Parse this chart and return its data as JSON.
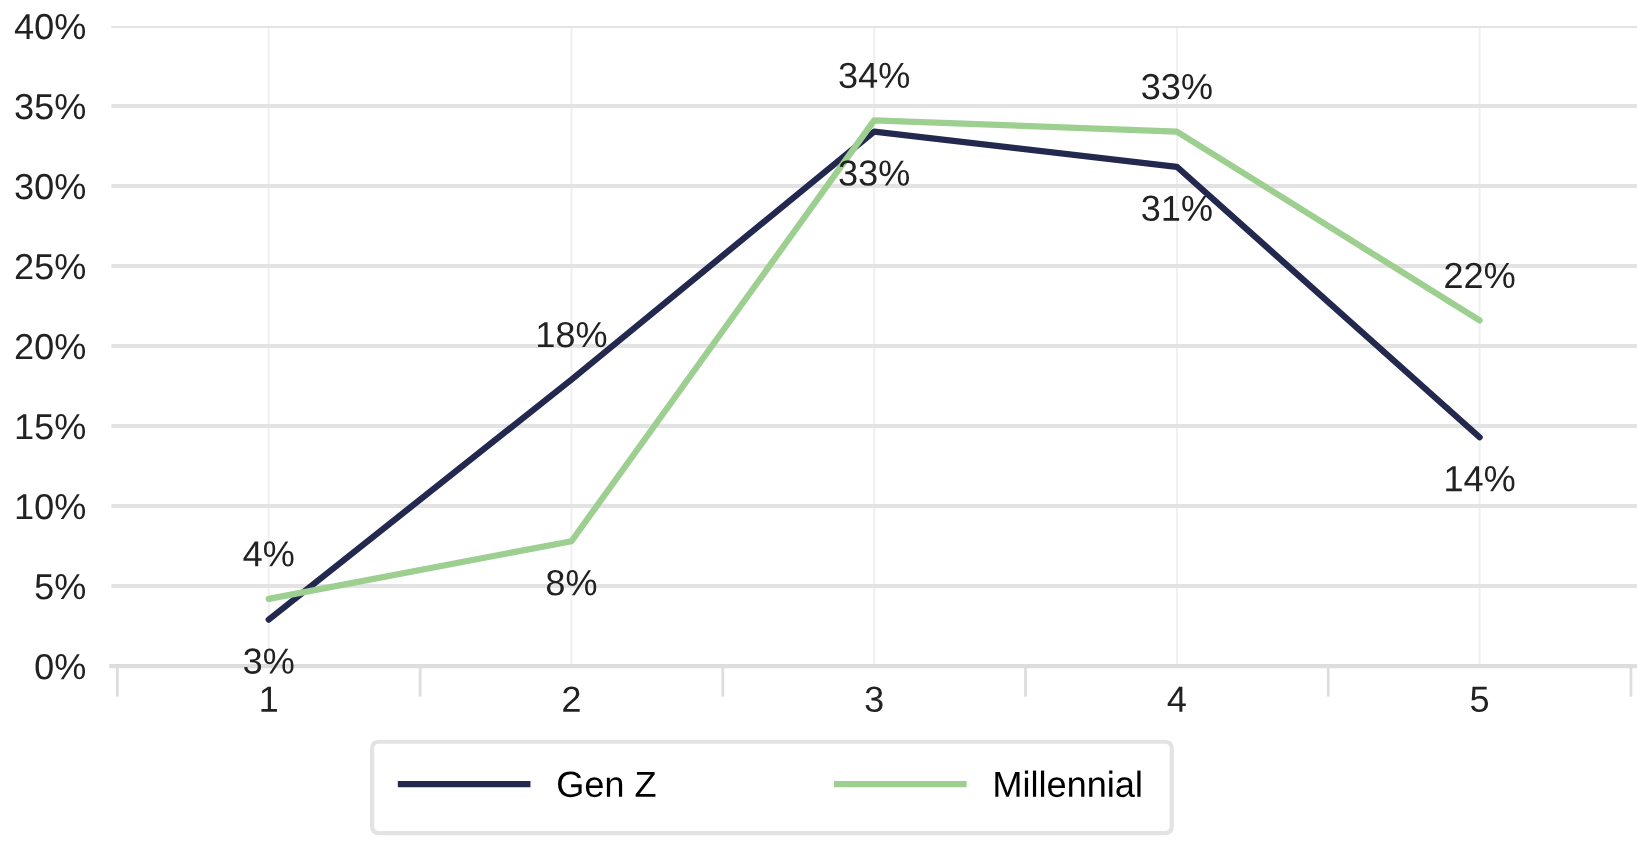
{
  "chart_data": {
    "type": "line",
    "categories": [
      "1",
      "2",
      "3",
      "4",
      "5"
    ],
    "series": [
      {
        "name": "Gen Z",
        "color": "#23284f",
        "values": [
          2.9,
          17.9,
          33.4,
          31.2,
          14.3
        ],
        "value_labels": [
          "3%",
          "18%",
          "33%",
          "31%",
          "14%"
        ]
      },
      {
        "name": "Millennial",
        "color": "#9dcf90",
        "values": [
          4.2,
          7.8,
          34.1,
          33.4,
          21.6
        ],
        "value_labels": [
          "4%",
          "8%",
          "34%",
          "33%",
          "22%"
        ]
      }
    ],
    "ylim": [
      0,
      40
    ],
    "yticks": [
      {
        "value": 0,
        "label": "0%"
      },
      {
        "value": 5,
        "label": "5%"
      },
      {
        "value": 10,
        "label": "10%"
      },
      {
        "value": 15,
        "label": "15%"
      },
      {
        "value": 20,
        "label": "20%"
      },
      {
        "value": 25,
        "label": "25%"
      },
      {
        "value": 30,
        "label": "30%"
      },
      {
        "value": 35,
        "label": "35%"
      },
      {
        "value": 40,
        "label": "40%"
      }
    ],
    "grid": true,
    "legend": "bottom",
    "marker": "none",
    "line_style": "solid"
  }
}
